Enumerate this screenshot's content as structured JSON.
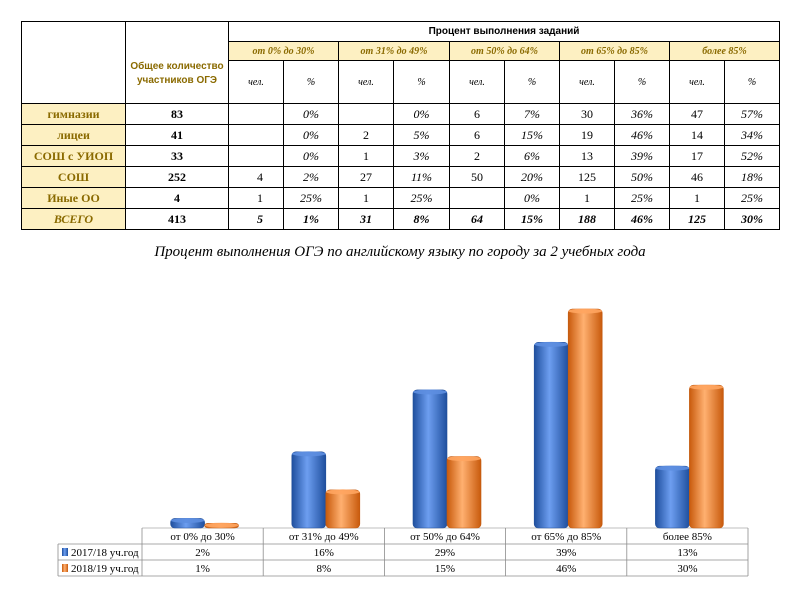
{
  "table": {
    "header": {
      "total_label": "Общее количество участников ОГЭ",
      "percent_title": "Процент выполнения заданий",
      "ranges": [
        "от 0% до 30%",
        "от 31% до 49%",
        "от 50% до 64%",
        "от 65% до 85%",
        "более 85%"
      ],
      "unit_count": "чел.",
      "unit_pct": "%"
    },
    "rows": [
      {
        "label": "гимназии",
        "total": "83",
        "cells": [
          "",
          "0%",
          "",
          "0%",
          "6",
          "7%",
          "30",
          "36%",
          "47",
          "57%"
        ]
      },
      {
        "label": "лицеи",
        "total": "41",
        "cells": [
          "",
          "0%",
          "2",
          "5%",
          "6",
          "15%",
          "19",
          "46%",
          "14",
          "34%"
        ]
      },
      {
        "label": "СОШ с УИОП",
        "total": "33",
        "cells": [
          "",
          "0%",
          "1",
          "3%",
          "2",
          "6%",
          "13",
          "39%",
          "17",
          "52%"
        ]
      },
      {
        "label": "СОШ",
        "total": "252",
        "cells": [
          "4",
          "2%",
          "27",
          "11%",
          "50",
          "20%",
          "125",
          "50%",
          "46",
          "18%"
        ]
      },
      {
        "label": "Иные ОО",
        "total": "4",
        "cells": [
          "1",
          "25%",
          "1",
          "25%",
          "",
          "0%",
          "1",
          "25%",
          "1",
          "25%"
        ]
      },
      {
        "label": "ВСЕГО",
        "total": "413",
        "cells": [
          "5",
          "1%",
          "31",
          "8%",
          "64",
          "15%",
          "188",
          "46%",
          "125",
          "30%"
        ]
      }
    ]
  },
  "chart_data": {
    "type": "bar",
    "title": "Процент выполнения ОГЭ по английскому языку по городу за 2 учебных года",
    "categories": [
      "от 0% до 30%",
      "от 31% до 49%",
      "от 50% до 64%",
      "от 65% до 85%",
      "более 85%"
    ],
    "series": [
      {
        "name": "2017/18 уч.год",
        "values": [
          2,
          16,
          29,
          39,
          13
        ],
        "labels": [
          "2%",
          "16%",
          "29%",
          "39%",
          "13%"
        ],
        "color": "#3465c8"
      },
      {
        "name": "2018/19 уч.год",
        "values": [
          1,
          8,
          15,
          46,
          30
        ],
        "labels": [
          "1%",
          "8%",
          "15%",
          "46%",
          "30%"
        ],
        "color": "#f07820"
      }
    ],
    "ylim": [
      0,
      50
    ],
    "legend": "data-table-bottom",
    "grid": false
  }
}
